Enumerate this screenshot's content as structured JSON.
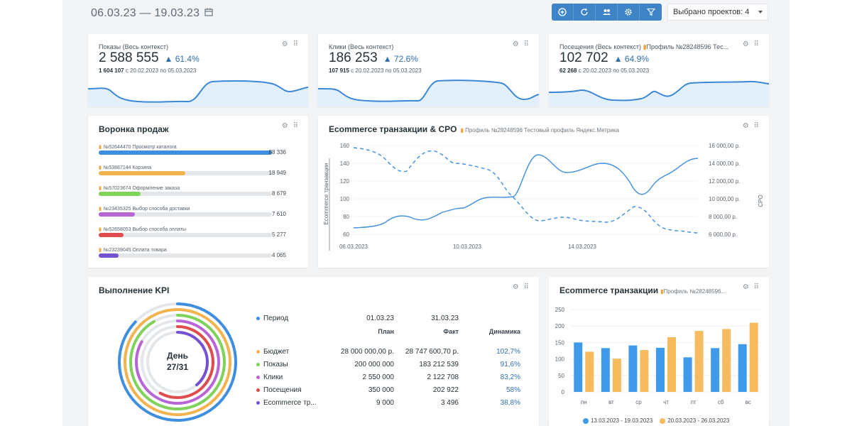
{
  "header": {
    "date_range": "06.03.23 — 19.03.23",
    "projects_select": "Выбрано проектов: 4"
  },
  "toolbar": {
    "icons": [
      "add-icon",
      "refresh-icon",
      "users-icon",
      "settings-icon",
      "filter-icon"
    ],
    "accent": "#3e84c6"
  },
  "kpi_cards": [
    {
      "title": "Показы (Весь контекст)",
      "value": "2 588 555",
      "change": "61.4%",
      "prev_value": "1 604 107",
      "prev_period": "с 20.02.2023 по 05.03.2023",
      "source": ""
    },
    {
      "title": "Клики (Весь контекст)",
      "value": "186 253",
      "change": "72.6%",
      "prev_value": "107 915",
      "prev_period": "с 20.02.2023 по 05.03.2023",
      "source": ""
    },
    {
      "title": "Посещения (Весь контекст)",
      "value": "102 702",
      "change": "64.9%",
      "prev_value": "62 268",
      "prev_period": "с 20.02.2023 по 05.03.2023",
      "source": "Профиль №28248596 Тес..."
    }
  ],
  "funnel": {
    "title": "Воронка продаж",
    "items": [
      {
        "label": "№52644470 Просмотр каталога",
        "value": "88 336",
        "fraction": 1.0,
        "color": "#3f8ee0"
      },
      {
        "label": "№53887144 Корзина",
        "value": "18 949",
        "fraction": 0.5,
        "color": "#f3b450"
      },
      {
        "label": "№57023674 Оформление заказа",
        "value": "8 679",
        "fraction": 0.24,
        "color": "#7fd35a"
      },
      {
        "label": "№23435325 Выбор способа доставки",
        "value": "7 610",
        "fraction": 0.21,
        "color": "#b865d8"
      },
      {
        "label": "№52658053 Выбор способа оплаты",
        "value": "5 277",
        "fraction": 0.145,
        "color": "#e04b4b"
      },
      {
        "label": "№23239045 Оплата товара",
        "value": "4 065",
        "fraction": 0.115,
        "color": "#7452d3"
      }
    ]
  },
  "ecom_chart": {
    "title": "Ecommerce транзакции & CPO",
    "source": "Профиль №28248596 Тестовый профиль Яндекс.Метрика",
    "left_axis_label": "Ecommerce транзакции",
    "right_axis_label": "CPO",
    "left_ticks": [
      "160",
      "140",
      "120",
      "100",
      "80",
      "60"
    ],
    "right_ticks": [
      "16 000,00 р.",
      "14 000,00 р.",
      "12 000,00 р.",
      "10 000,00 р.",
      "8 000,00 р.",
      "6 000,00 р."
    ],
    "x_ticks": [
      "06.03.2023",
      "10.03.2023",
      "14.03.2023"
    ]
  },
  "kpi_block": {
    "title": "Выполнение KPI",
    "center_line1": "День",
    "center_line2": "27/31",
    "period_label": "Период",
    "period_start": "01.03.23",
    "period_end": "31.03.23",
    "col_plan": "План",
    "col_fact": "Факт",
    "col_dyn": "Динамика",
    "rows": [
      {
        "name": "Бюджет",
        "plan": "28 000 000,00 р.",
        "fact": "28 747 600,70 р.",
        "dyn": "102,7%",
        "color": "#f3b450"
      },
      {
        "name": "Показы",
        "plan": "200 000 000",
        "fact": "183 212 539",
        "dyn": "91,6%",
        "color": "#7fd35a"
      },
      {
        "name": "Клики",
        "plan": "2 550 000",
        "fact": "2 122 708",
        "dyn": "83,2%",
        "color": "#b865d8"
      },
      {
        "name": "Посещения",
        "plan": "350 000",
        "fact": "202 922",
        "dyn": "58%",
        "color": "#e04b4b"
      },
      {
        "name": "Ecommerce тр...",
        "plan": "9 000",
        "fact": "3 496",
        "dyn": "38,8%",
        "color": "#7452d3"
      }
    ],
    "period_dot_color": "#3f8ee0"
  },
  "chart_data": {
    "type": "bar",
    "title": "Ecommerce транзакции",
    "source": "Профиль №28248596...",
    "categories": [
      "пн",
      "вт",
      "ср",
      "чт",
      "пт",
      "сб",
      "вс"
    ],
    "ylim": [
      0,
      250
    ],
    "yticks": [
      "250",
      "200",
      "150",
      "100",
      "50",
      "0"
    ],
    "series": [
      {
        "name": "13.03.2023 - 19.03.2023",
        "values": [
          150,
          133,
          141,
          134,
          105,
          133,
          145
        ],
        "color": "#3f9be9"
      },
      {
        "name": "20.03.2023 - 26.03.2023",
        "values": [
          122,
          101,
          127,
          166,
          185,
          191,
          210
        ],
        "color": "#f5bb5c"
      }
    ]
  }
}
